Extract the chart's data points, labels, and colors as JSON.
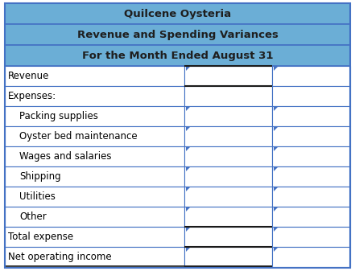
{
  "title1": "Quilcene Oysteria",
  "title2": "Revenue and Spending Variances",
  "title3": "For the Month Ended August 31",
  "header_bg": "#6baed6",
  "header_text_color": "#1f1f1f",
  "cell_bg": "#ffffff",
  "border_blue": "#4472c4",
  "border_dark": "#1a1a1a",
  "rows": [
    {
      "label": "Revenue",
      "indent": 0,
      "has_triangle": true,
      "dark_top_mid": true,
      "dark_top_label": false
    },
    {
      "label": "Expenses:",
      "indent": 0,
      "has_triangle": false,
      "dark_top_mid": true,
      "dark_top_label": false
    },
    {
      "label": "Packing supplies",
      "indent": 1,
      "has_triangle": true,
      "dark_top_mid": false,
      "dark_top_label": false
    },
    {
      "label": "Oyster bed maintenance",
      "indent": 1,
      "has_triangle": true,
      "dark_top_mid": false,
      "dark_top_label": false
    },
    {
      "label": "Wages and salaries",
      "indent": 1,
      "has_triangle": true,
      "dark_top_mid": false,
      "dark_top_label": false
    },
    {
      "label": "Shipping",
      "indent": 1,
      "has_triangle": true,
      "dark_top_mid": false,
      "dark_top_label": false
    },
    {
      "label": "Utilities",
      "indent": 1,
      "has_triangle": true,
      "dark_top_mid": false,
      "dark_top_label": false
    },
    {
      "label": "Other",
      "indent": 1,
      "has_triangle": true,
      "dark_top_mid": false,
      "dark_top_label": false
    },
    {
      "label": "Total expense",
      "indent": 0,
      "has_triangle": true,
      "dark_top_mid": true,
      "dark_top_label": false
    },
    {
      "label": "Net operating income",
      "indent": 0,
      "has_triangle": true,
      "dark_top_mid": true,
      "dark_top_label": false
    }
  ],
  "fig_width": 4.41,
  "fig_height": 3.37,
  "font_size": 8.5,
  "title_font_size": 9.5
}
